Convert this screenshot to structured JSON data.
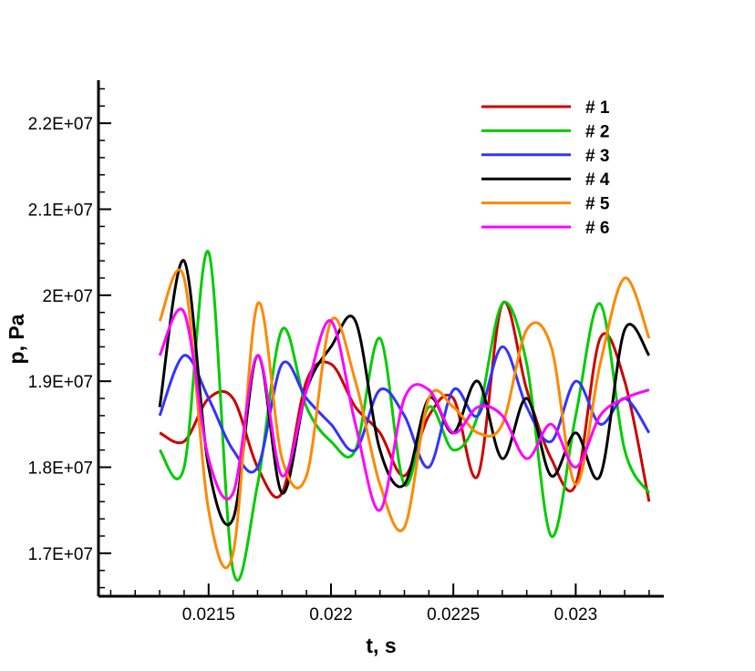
{
  "chart_data": {
    "type": "line",
    "xlabel": "t, s",
    "ylabel": "p, Pa",
    "xlim": [
      0.02105,
      0.02336
    ],
    "ylim": [
      16500000,
      22500000
    ],
    "x_ticks": [
      {
        "value": 0.0215,
        "label": "0.0215"
      },
      {
        "value": 0.022,
        "label": "0.022"
      },
      {
        "value": 0.0225,
        "label": "0.0225"
      },
      {
        "value": 0.023,
        "label": "0.023"
      }
    ],
    "y_ticks": [
      {
        "value": 17000000,
        "label": "1.7E+07"
      },
      {
        "value": 18000000,
        "label": "1.8E+07"
      },
      {
        "value": 19000000,
        "label": "1.9E+07"
      },
      {
        "value": 20000000,
        "label": "2E+07"
      },
      {
        "value": 21000000,
        "label": "2.1E+07"
      },
      {
        "value": 22000000,
        "label": "2.2E+07"
      }
    ],
    "legend_position": "top-right",
    "grid": false,
    "series": [
      {
        "name": "# 1",
        "color": "#cc0000",
        "x": [
          0.0213,
          0.0214,
          0.0215,
          0.0216,
          0.0217,
          0.0218,
          0.0219,
          0.022,
          0.0221,
          0.0222,
          0.0223,
          0.0224,
          0.0225,
          0.0226,
          0.0227,
          0.0228,
          0.0229,
          0.023,
          0.0231,
          0.0232,
          0.0233
        ],
        "y": [
          18400000,
          18300000,
          18800000,
          18800000,
          18000000,
          17700000,
          19000000,
          19200000,
          18700000,
          18400000,
          17900000,
          18600000,
          18800000,
          17900000,
          19900000,
          18900000,
          18100000,
          17800000,
          19500000,
          19000000,
          17600000
        ]
      },
      {
        "name": "# 2",
        "color": "#00cc00",
        "x": [
          0.0213,
          0.0214,
          0.0215,
          0.0216,
          0.0217,
          0.0218,
          0.0219,
          0.022,
          0.0221,
          0.0222,
          0.0223,
          0.0224,
          0.0225,
          0.0226,
          0.0227,
          0.0228,
          0.0229,
          0.023,
          0.0231,
          0.0232,
          0.0233
        ],
        "y": [
          18200000,
          18000000,
          20500000,
          16800000,
          17800000,
          19600000,
          18700000,
          18300000,
          18200000,
          19500000,
          17800000,
          18700000,
          18200000,
          18600000,
          19900000,
          19200000,
          17200000,
          18600000,
          19900000,
          18200000,
          17700000
        ]
      },
      {
        "name": "# 3",
        "color": "#3333ff",
        "x": [
          0.0213,
          0.0214,
          0.0215,
          0.0216,
          0.0217,
          0.0218,
          0.0219,
          0.022,
          0.0221,
          0.0222,
          0.0223,
          0.0224,
          0.0225,
          0.0226,
          0.0227,
          0.0228,
          0.0229,
          0.023,
          0.0231,
          0.0232,
          0.0233
        ],
        "y": [
          18600000,
          19300000,
          18800000,
          18200000,
          18000000,
          19200000,
          18800000,
          18500000,
          18200000,
          18900000,
          18600000,
          18000000,
          18900000,
          18600000,
          19400000,
          18700000,
          18300000,
          19000000,
          18500000,
          18800000,
          18400000
        ]
      },
      {
        "name": "# 4",
        "color": "#000000",
        "x": [
          0.0213,
          0.0214,
          0.0215,
          0.0216,
          0.0217,
          0.0218,
          0.0219,
          0.022,
          0.0221,
          0.0222,
          0.0223,
          0.0224,
          0.0225,
          0.0226,
          0.0227,
          0.0228,
          0.0229,
          0.023,
          0.0231,
          0.0232,
          0.0233
        ],
        "y": [
          18700000,
          20400000,
          18000000,
          17400000,
          19300000,
          17700000,
          18900000,
          19400000,
          19700000,
          18200000,
          17800000,
          18800000,
          18400000,
          19000000,
          18100000,
          18800000,
          17900000,
          18400000,
          17900000,
          19600000,
          19300000
        ]
      },
      {
        "name": "# 5",
        "color": "#ff8800",
        "x": [
          0.0213,
          0.0214,
          0.0215,
          0.0216,
          0.0217,
          0.0218,
          0.0219,
          0.022,
          0.0221,
          0.0222,
          0.0223,
          0.0224,
          0.0225,
          0.0226,
          0.0227,
          0.0228,
          0.0229,
          0.023,
          0.0231,
          0.0232,
          0.0233
        ],
        "y": [
          19700000,
          20200000,
          17500000,
          17000000,
          19900000,
          18100000,
          17900000,
          19700000,
          19000000,
          17800000,
          17300000,
          18800000,
          18700000,
          18400000,
          18500000,
          19600000,
          19400000,
          17800000,
          19200000,
          20200000,
          19500000
        ]
      },
      {
        "name": "# 6",
        "color": "#ff00ff",
        "x": [
          0.0213,
          0.0214,
          0.0215,
          0.0216,
          0.0217,
          0.0218,
          0.0219,
          0.022,
          0.0221,
          0.0222,
          0.0223,
          0.0224,
          0.0225,
          0.0226,
          0.0227,
          0.0228,
          0.0229,
          0.023,
          0.0231,
          0.0232,
          0.0233
        ],
        "y": [
          19300000,
          19800000,
          18100000,
          17700000,
          19300000,
          17900000,
          18900000,
          19700000,
          18500000,
          17500000,
          18800000,
          18900000,
          18400000,
          18700000,
          18600000,
          18100000,
          18500000,
          18000000,
          18600000,
          18800000,
          18900000
        ]
      }
    ]
  }
}
